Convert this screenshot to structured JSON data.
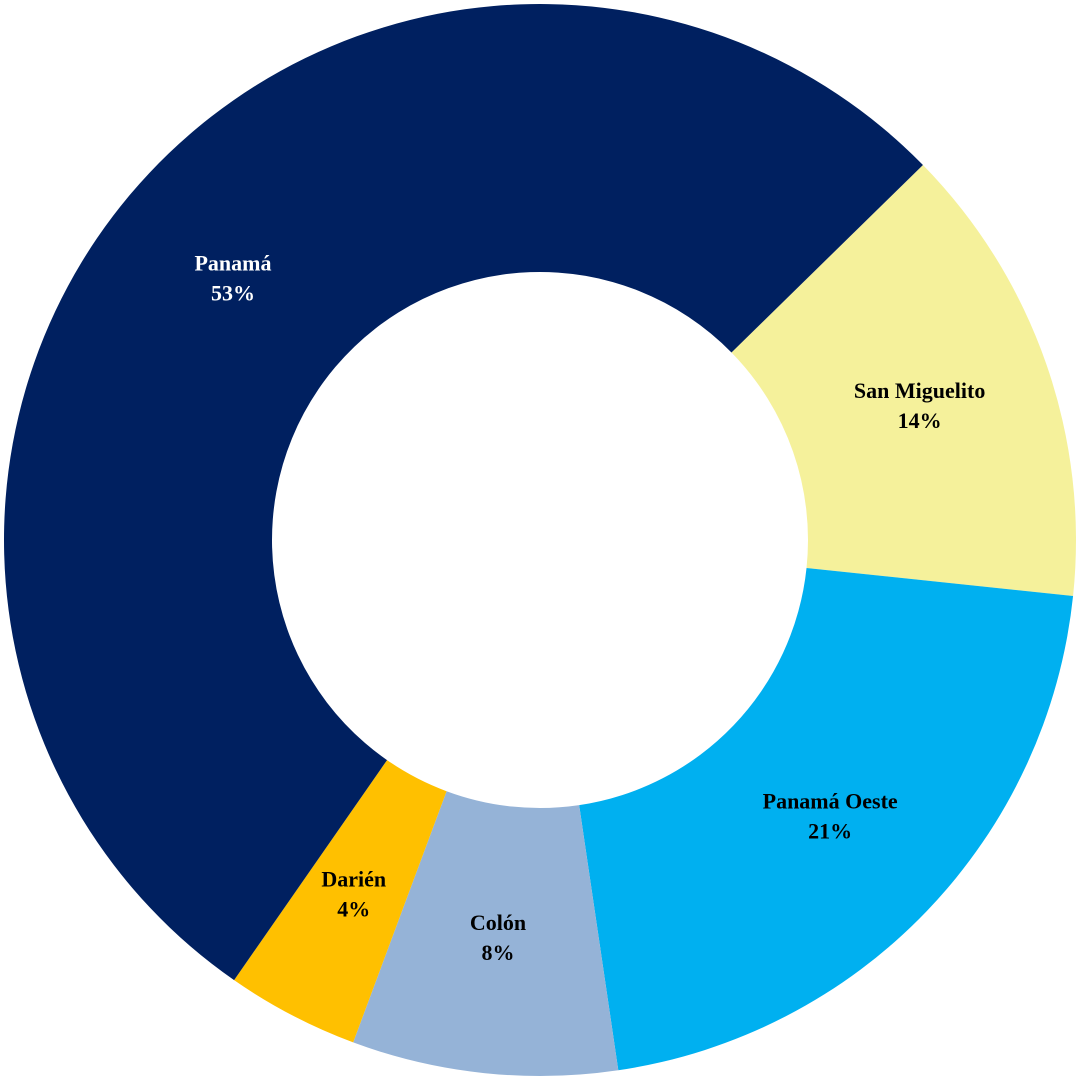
{
  "chart_data": {
    "type": "donut",
    "categories": [
      "San Miguelito",
      "Panamá Oeste",
      "Colón",
      "Darién",
      "Panamá"
    ],
    "values": [
      14,
      21,
      8,
      4,
      53
    ],
    "value_labels": [
      "14%",
      "21%",
      "8%",
      "4%",
      "53%"
    ],
    "colors": [
      "#f5f19b",
      "#00b0f0",
      "#95b3d7",
      "#ffc000",
      "#002060"
    ]
  }
}
